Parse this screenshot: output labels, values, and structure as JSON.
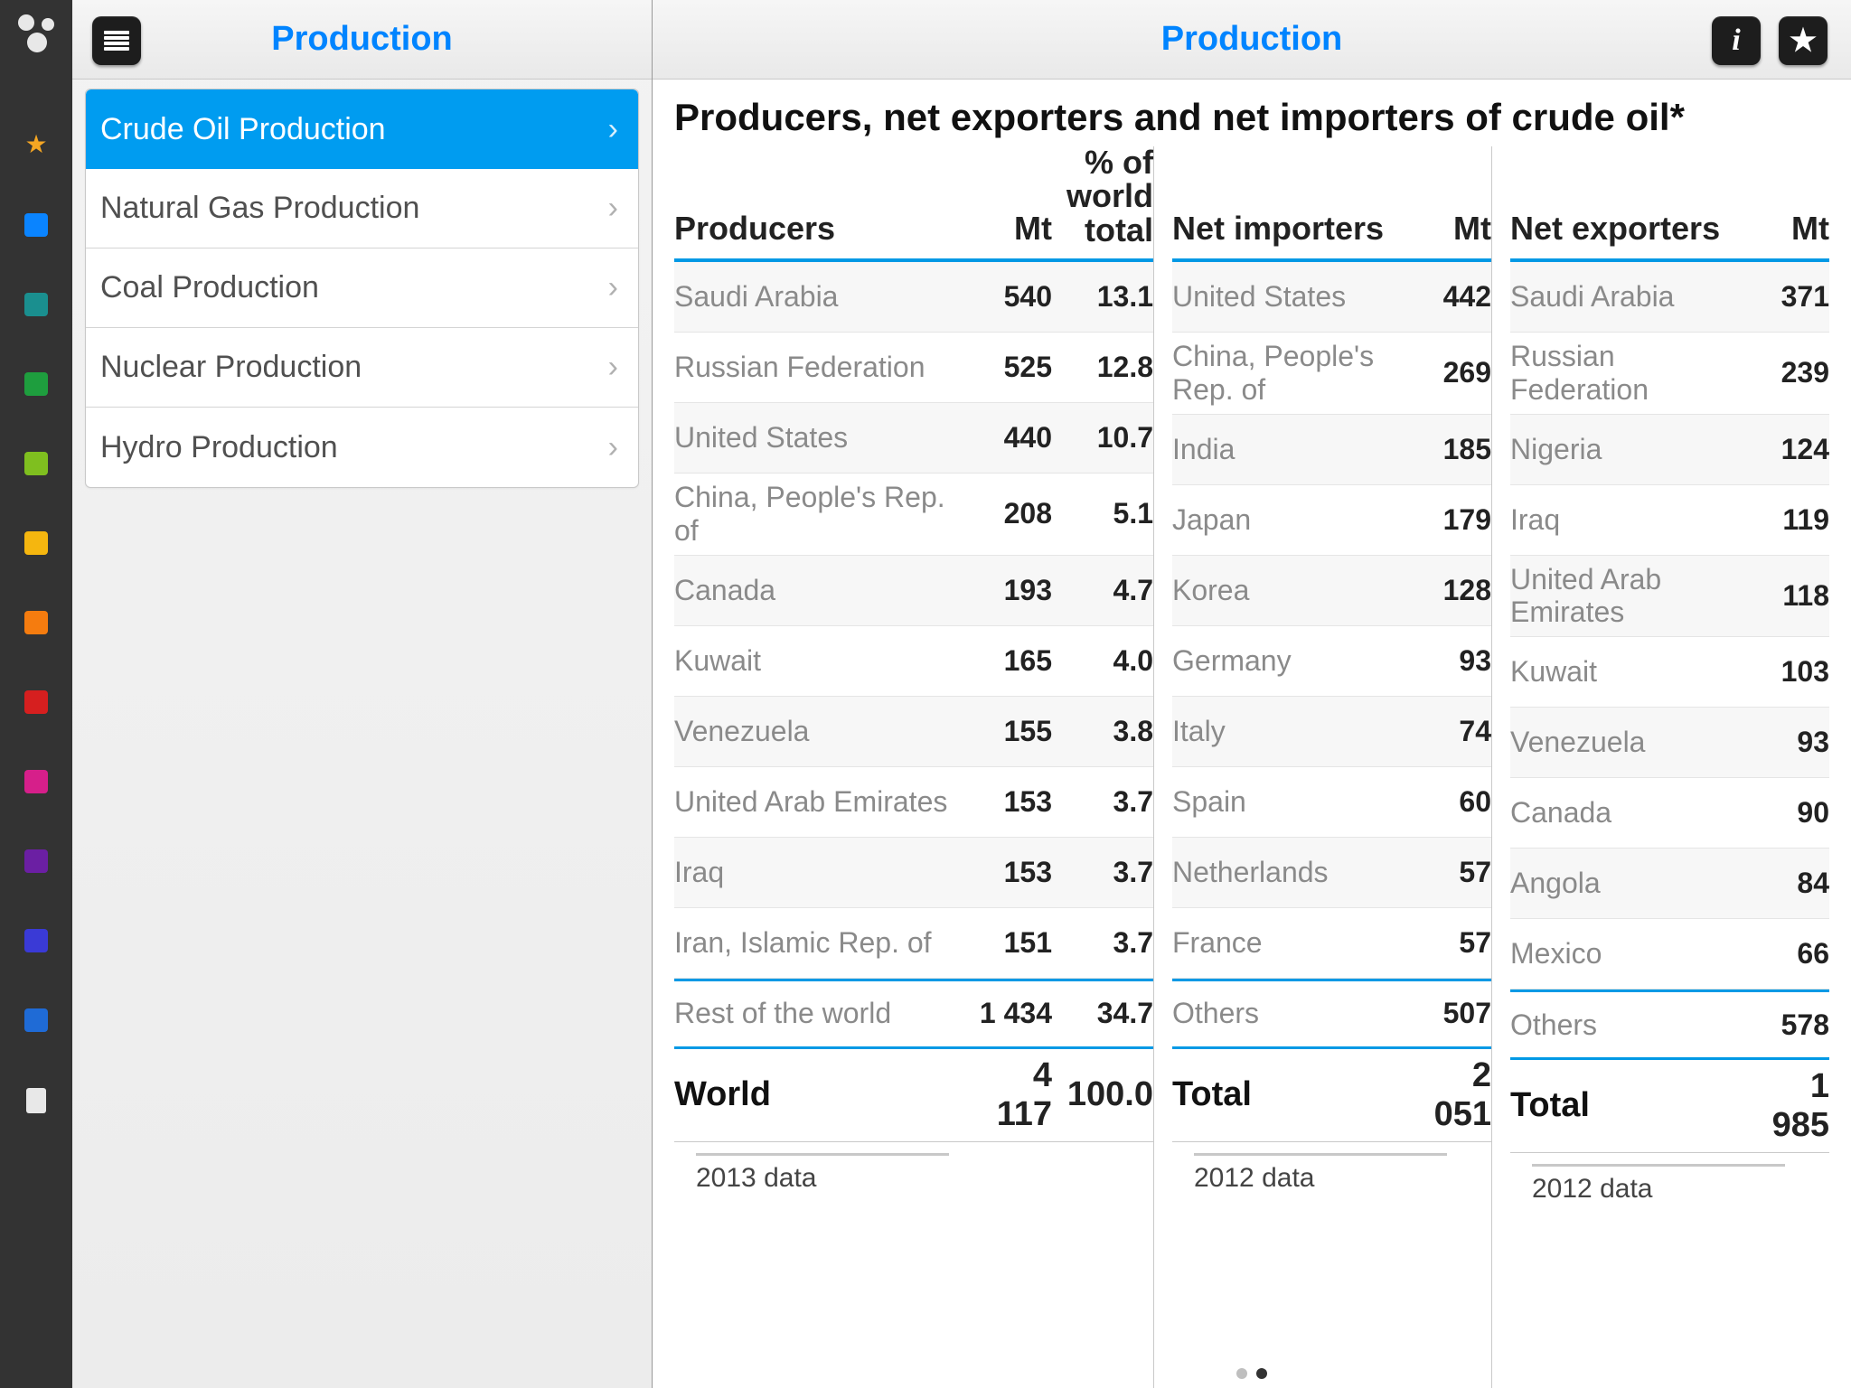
{
  "colors": {
    "accent": "#0099e5",
    "headerText": "#0084ff",
    "railBg": "#333333",
    "rowAlt": "#f7f7f7",
    "divider": "#c9c9c9"
  },
  "rail": {
    "items": [
      {
        "type": "star",
        "color": "#f5a623"
      },
      {
        "type": "square",
        "color": "#0a84ff"
      },
      {
        "type": "square",
        "color": "#1a8f8f"
      },
      {
        "type": "square",
        "color": "#1e9e3e"
      },
      {
        "type": "square",
        "color": "#7fbf1f"
      },
      {
        "type": "square",
        "color": "#f5b60f"
      },
      {
        "type": "square",
        "color": "#f57c0f"
      },
      {
        "type": "square",
        "color": "#d61f1f"
      },
      {
        "type": "square",
        "color": "#d61f8a"
      },
      {
        "type": "square",
        "color": "#6b1fa3"
      },
      {
        "type": "square",
        "color": "#3a3ad6"
      },
      {
        "type": "square",
        "color": "#1f6bd6"
      },
      {
        "type": "device",
        "color": "#e8e8e8"
      }
    ]
  },
  "sidebar": {
    "title": "Production",
    "items": [
      {
        "label": "Crude Oil Production",
        "selected": true
      },
      {
        "label": "Natural Gas Production",
        "selected": false
      },
      {
        "label": "Coal Production",
        "selected": false
      },
      {
        "label": "Nuclear Production",
        "selected": false
      },
      {
        "label": "Hydro Production",
        "selected": false
      }
    ]
  },
  "main": {
    "title": "Production",
    "pageTitle": "Producers, net exporters and net importers of crude oil*",
    "pageDots": {
      "count": 2,
      "active": 1
    },
    "tables": {
      "producers": {
        "headers": {
          "name": "Producers",
          "mt": "Mt",
          "pct": "% of\nworld\ntotal"
        },
        "rows": [
          {
            "name": "Saudi Arabia",
            "mt": "540",
            "pct": "13.1"
          },
          {
            "name": "Russian Federation",
            "mt": "525",
            "pct": "12.8"
          },
          {
            "name": "United States",
            "mt": "440",
            "pct": "10.7"
          },
          {
            "name": "China, People's Rep. of",
            "mt": "208",
            "pct": "5.1"
          },
          {
            "name": "Canada",
            "mt": "193",
            "pct": "4.7"
          },
          {
            "name": "Kuwait",
            "mt": "165",
            "pct": "4.0"
          },
          {
            "name": "Venezuela",
            "mt": "155",
            "pct": "3.8"
          },
          {
            "name": "United Arab Emirates",
            "mt": "153",
            "pct": "3.7"
          },
          {
            "name": "Iraq",
            "mt": "153",
            "pct": "3.7"
          },
          {
            "name": "Iran, Islamic Rep. of",
            "mt": "151",
            "pct": "3.7"
          }
        ],
        "rest": {
          "name": "Rest of the world",
          "mt": "1 434",
          "pct": "34.7"
        },
        "total": {
          "name": "World",
          "mt": "4 117",
          "pct": "100.0"
        },
        "note": "2013 data"
      },
      "importers": {
        "headers": {
          "name": "Net importers",
          "mt": "Mt"
        },
        "rows": [
          {
            "name": "United States",
            "mt": "442"
          },
          {
            "name": "China, People's Rep. of",
            "mt": "269"
          },
          {
            "name": "India",
            "mt": "185"
          },
          {
            "name": "Japan",
            "mt": "179"
          },
          {
            "name": "Korea",
            "mt": "128"
          },
          {
            "name": "Germany",
            "mt": "93"
          },
          {
            "name": "Italy",
            "mt": "74"
          },
          {
            "name": "Spain",
            "mt": "60"
          },
          {
            "name": "Netherlands",
            "mt": "57"
          },
          {
            "name": "France",
            "mt": "57"
          }
        ],
        "rest": {
          "name": "Others",
          "mt": "507"
        },
        "total": {
          "name": "Total",
          "mt": "2 051"
        },
        "note": "2012 data"
      },
      "exporters": {
        "headers": {
          "name": "Net exporters",
          "mt": "Mt"
        },
        "rows": [
          {
            "name": "Saudi Arabia",
            "mt": "371"
          },
          {
            "name": "Russian Federation",
            "mt": "239"
          },
          {
            "name": "Nigeria",
            "mt": "124"
          },
          {
            "name": "Iraq",
            "mt": "119"
          },
          {
            "name": "United Arab Emirates",
            "mt": "118"
          },
          {
            "name": "Kuwait",
            "mt": "103"
          },
          {
            "name": "Venezuela",
            "mt": "93"
          },
          {
            "name": "Canada",
            "mt": "90"
          },
          {
            "name": "Angola",
            "mt": "84"
          },
          {
            "name": "Mexico",
            "mt": "66"
          }
        ],
        "rest": {
          "name": "Others",
          "mt": "578"
        },
        "total": {
          "name": "Total",
          "mt": "1 985"
        },
        "note": "2012 data"
      }
    }
  }
}
